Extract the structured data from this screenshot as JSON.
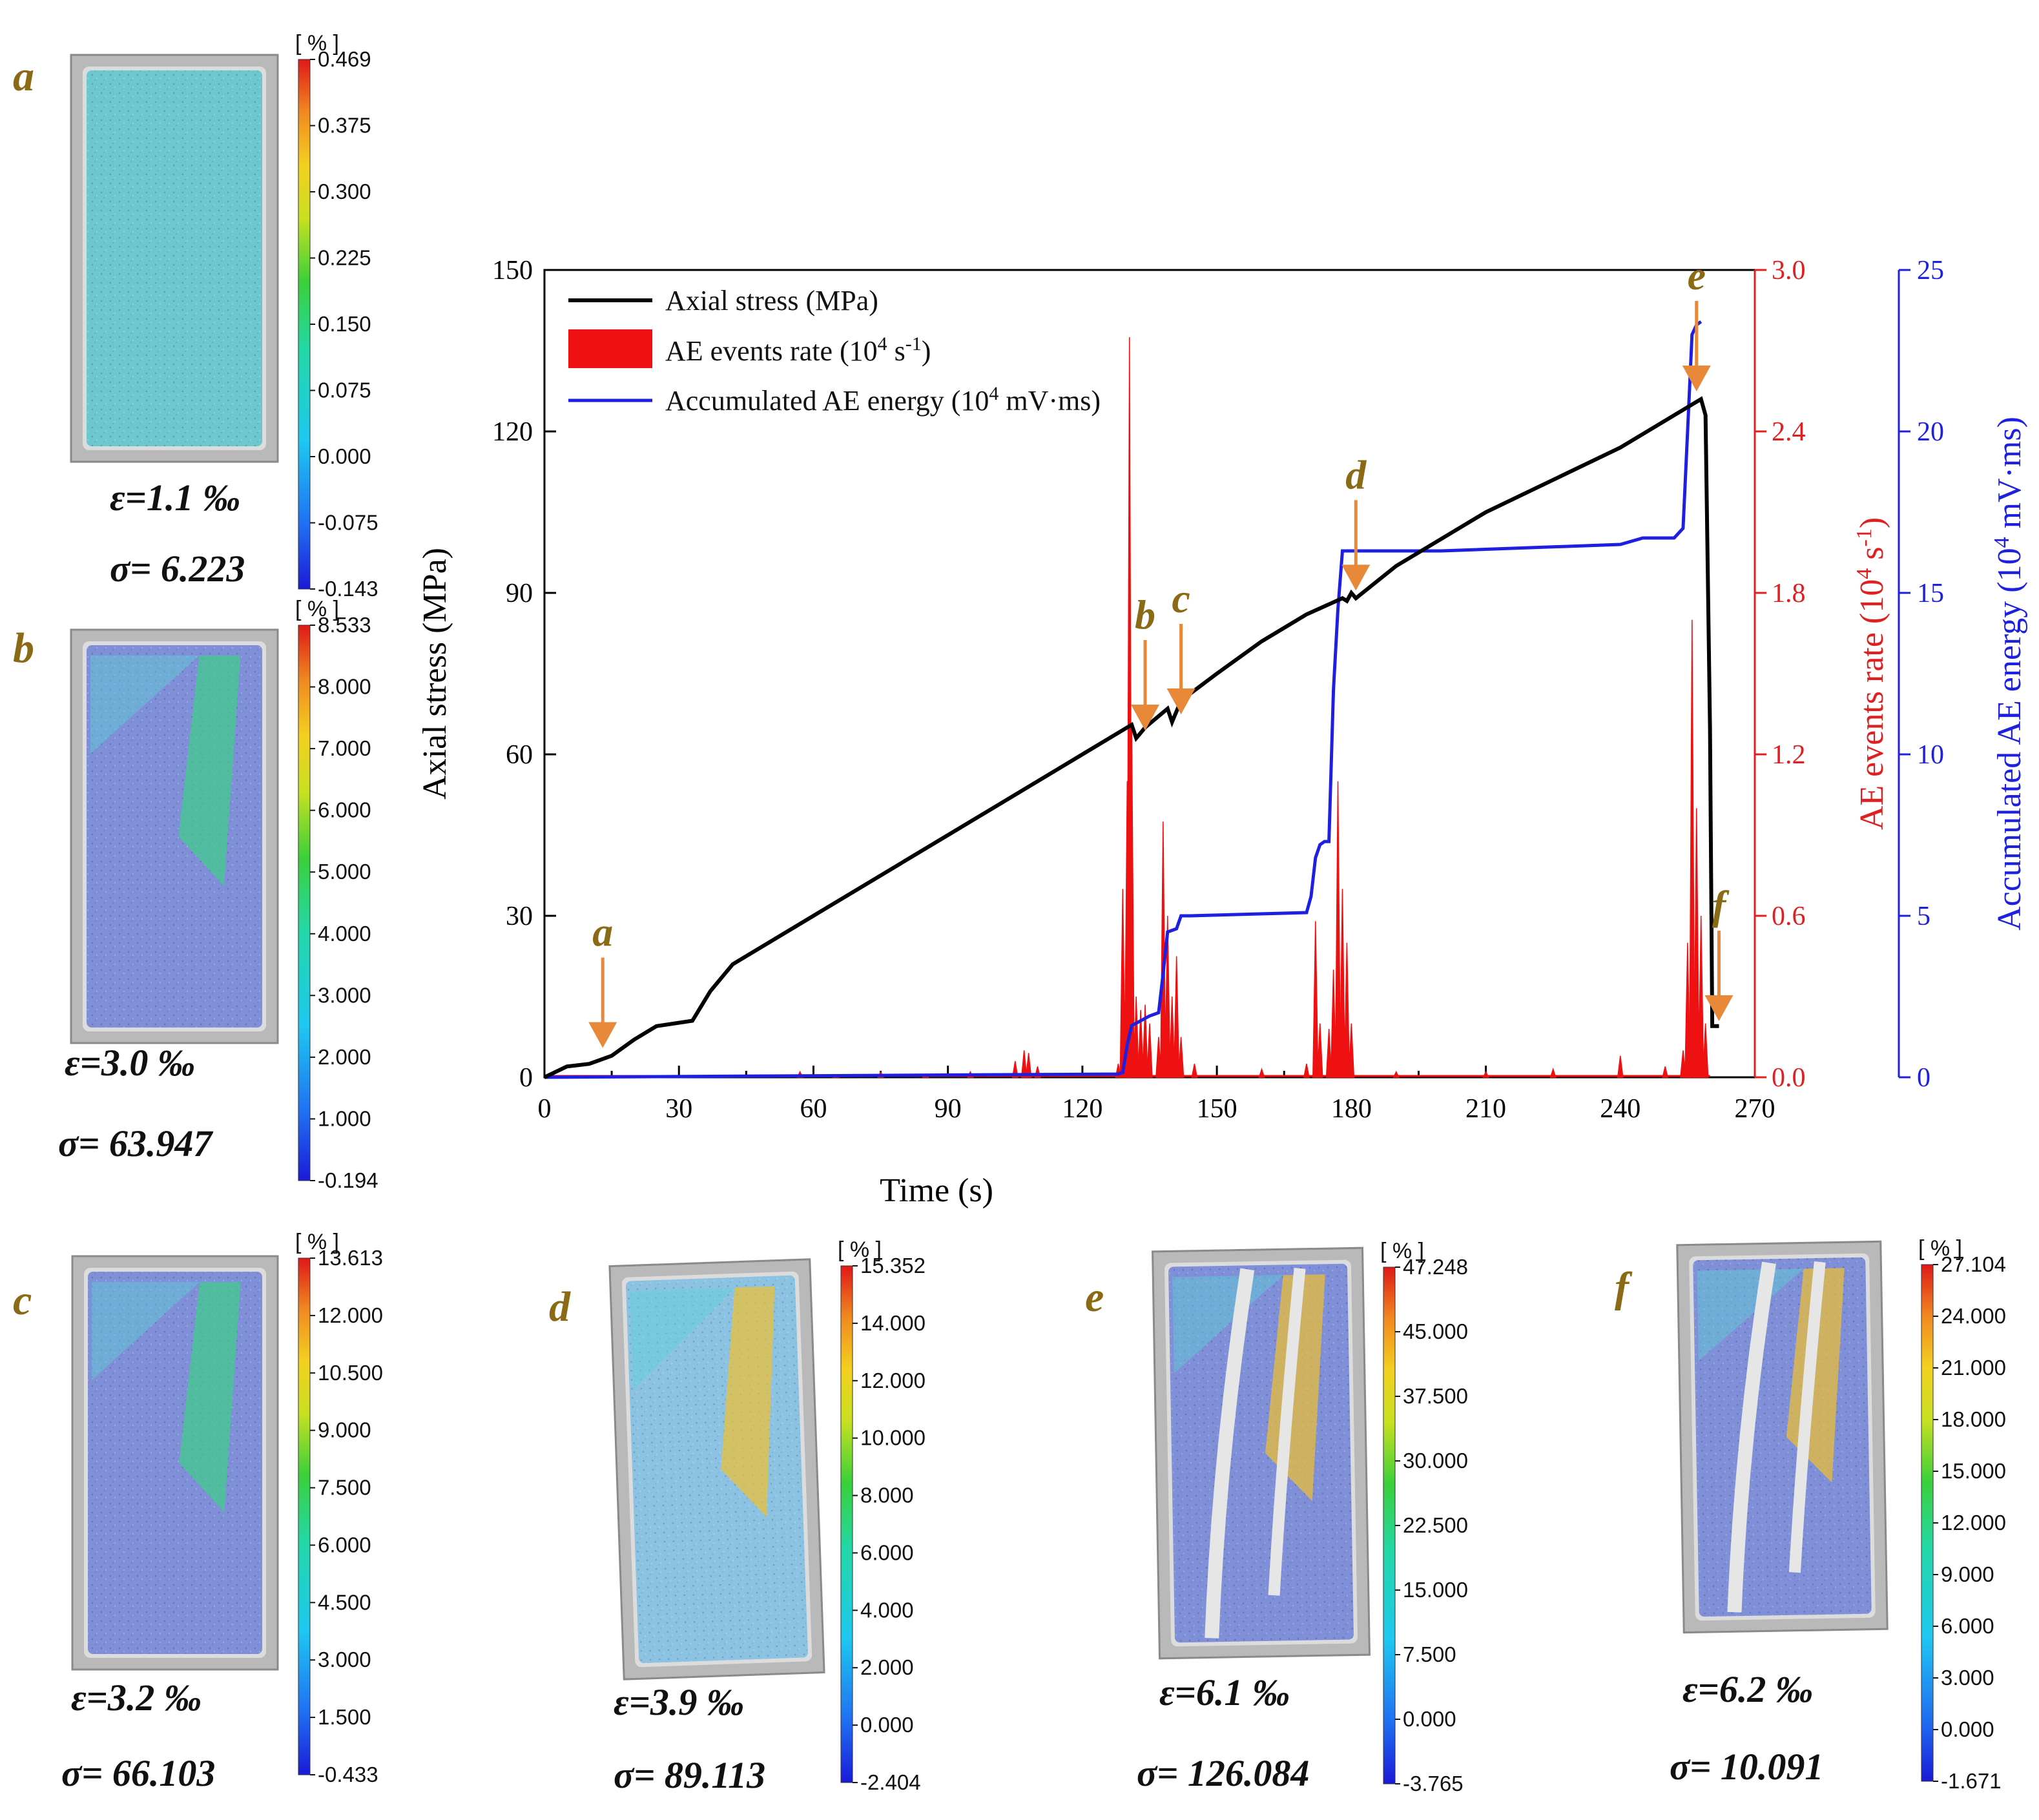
{
  "chart_data": {
    "type": "line",
    "xlabel": "Time (s)",
    "xlim": [
      0,
      270
    ],
    "xticks": [
      "0",
      "30",
      "60",
      "90",
      "120",
      "150",
      "180",
      "210",
      "240",
      "270"
    ],
    "axes": {
      "left": {
        "label": "Axial stress (MPa)",
        "lim": [
          0,
          150
        ],
        "ticks": [
          "0",
          "30",
          "60",
          "90",
          "120",
          "150"
        ],
        "color": "#000000"
      },
      "right1": {
        "label_main": "AE events rate (10",
        "label_sup": "4",
        "label_mid": " s",
        "label_sup2": "-1",
        "label_end": ")",
        "lim": [
          0,
          3.0
        ],
        "ticks": [
          "0.0",
          "0.6",
          "1.2",
          "1.8",
          "2.4",
          "3.0"
        ],
        "color": "#e02020"
      },
      "right2": {
        "label_main": "Accumulated AE energy (10",
        "label_sup": "4",
        "label_end": " mV·ms)",
        "lim": [
          0,
          25
        ],
        "ticks": [
          "0",
          "5",
          "10",
          "15",
          "20",
          "25"
        ],
        "color": "#1f1fe0"
      }
    },
    "legend": {
      "placement": "top-left",
      "items": [
        {
          "name": "Axial stress (MPa)",
          "color": "#000000",
          "kind": "line"
        },
        {
          "name_main": "AE events rate (10",
          "sup": "4",
          "mid": " s",
          "sup2": "-1",
          "end": ")",
          "color": "#ee1111",
          "kind": "patch"
        },
        {
          "name_main": "Accumulated AE energy (10",
          "sup": "4",
          "end": " mV·ms)",
          "color": "#1f1fe0",
          "kind": "line"
        }
      ]
    },
    "series": [
      {
        "name": "Axial stress",
        "axis": "left",
        "color": "#000000",
        "points": [
          [
            0,
            0
          ],
          [
            5,
            2
          ],
          [
            10,
            2.5
          ],
          [
            15,
            4
          ],
          [
            20,
            7
          ],
          [
            25,
            9.5
          ],
          [
            33,
            10.5
          ],
          [
            37,
            16
          ],
          [
            42,
            21
          ],
          [
            60,
            30
          ],
          [
            90,
            45
          ],
          [
            120,
            60
          ],
          [
            130,
            65
          ],
          [
            131,
            65.5
          ],
          [
            132,
            63
          ],
          [
            134,
            65
          ],
          [
            139,
            68.5
          ],
          [
            140,
            66
          ],
          [
            142,
            70
          ],
          [
            150,
            75
          ],
          [
            160,
            81
          ],
          [
            170,
            86
          ],
          [
            178,
            89
          ],
          [
            179,
            88.5
          ],
          [
            180,
            90
          ],
          [
            181,
            89
          ],
          [
            190,
            95
          ],
          [
            210,
            105
          ],
          [
            240,
            117
          ],
          [
            256,
            125
          ],
          [
            258,
            126
          ],
          [
            259,
            123
          ],
          [
            260,
            65
          ],
          [
            260.5,
            9.5
          ],
          [
            262,
            9.5
          ]
        ]
      },
      {
        "name": "Accumulated AE energy",
        "axis": "right2",
        "color": "#1f1fe0",
        "points": [
          [
            0,
            0
          ],
          [
            128,
            0.1
          ],
          [
            129,
            0.15
          ],
          [
            130,
            1.0
          ],
          [
            131,
            1.6
          ],
          [
            135,
            1.9
          ],
          [
            137,
            2.0
          ],
          [
            138,
            3.2
          ],
          [
            139,
            4.5
          ],
          [
            141,
            4.6
          ],
          [
            142,
            5.0
          ],
          [
            144,
            5.0
          ],
          [
            170,
            5.1
          ],
          [
            171,
            5.6
          ],
          [
            172,
            6.8
          ],
          [
            173,
            7.2
          ],
          [
            174,
            7.3
          ],
          [
            175,
            7.3
          ],
          [
            176,
            12
          ],
          [
            177,
            14.5
          ],
          [
            178,
            16.3
          ],
          [
            180,
            16.3
          ],
          [
            200,
            16.3
          ],
          [
            240,
            16.5
          ],
          [
            245,
            16.7
          ],
          [
            252,
            16.7
          ],
          [
            254,
            17.0
          ],
          [
            255,
            20
          ],
          [
            256,
            23.0
          ],
          [
            257,
            23.3
          ],
          [
            258,
            23.4
          ]
        ]
      },
      {
        "name": "AE events rate",
        "axis": "right1",
        "color": "#ee1111",
        "kind": "spikes",
        "points": [
          [
            57,
            0.02
          ],
          [
            65,
            0.01
          ],
          [
            75,
            0.02
          ],
          [
            85,
            0.01
          ],
          [
            95,
            0.02
          ],
          [
            105,
            0.06
          ],
          [
            107,
            0.1
          ],
          [
            108,
            0.09
          ],
          [
            110,
            0.04
          ],
          [
            128,
            0.05
          ],
          [
            129,
            0.7
          ],
          [
            130,
            1.1
          ],
          [
            130.5,
            2.75
          ],
          [
            131,
            1.3
          ],
          [
            132,
            0.3
          ],
          [
            133,
            0.25
          ],
          [
            134,
            0.27
          ],
          [
            135,
            0.2
          ],
          [
            137,
            0.15
          ],
          [
            138,
            0.95
          ],
          [
            139,
            0.6
          ],
          [
            140,
            0.3
          ],
          [
            141,
            0.45
          ],
          [
            142,
            0.15
          ],
          [
            145,
            0.05
          ],
          [
            160,
            0.03
          ],
          [
            170,
            0.05
          ],
          [
            172,
            0.58
          ],
          [
            173,
            0.2
          ],
          [
            175,
            0.18
          ],
          [
            176,
            0.4
          ],
          [
            177,
            1.1
          ],
          [
            178,
            0.7
          ],
          [
            179,
            0.5
          ],
          [
            180,
            0.2
          ],
          [
            190,
            0.02
          ],
          [
            210,
            0.02
          ],
          [
            225,
            0.03
          ],
          [
            240,
            0.08
          ],
          [
            250,
            0.04
          ],
          [
            254,
            0.1
          ],
          [
            255,
            0.5
          ],
          [
            256,
            1.7
          ],
          [
            257,
            1.0
          ],
          [
            258,
            0.6
          ],
          [
            259,
            0.2
          ]
        ]
      }
    ],
    "annotations": [
      {
        "label": "a",
        "t": 13,
        "stress": 4
      },
      {
        "label": "b",
        "t": 134,
        "stress": 63
      },
      {
        "label": "c",
        "t": 142,
        "stress": 66
      },
      {
        "label": "d",
        "t": 181,
        "stress": 89
      },
      {
        "label": "e",
        "t": 257,
        "stress": 126
      },
      {
        "label": "f",
        "t": 262,
        "stress": 9
      }
    ]
  },
  "panels": [
    {
      "label": "a",
      "strain": "ε=1.1 ‰",
      "stress": "σ= 6.223",
      "unit": "[ % ]",
      "ticks": [
        "0.469",
        "0.375",
        "0.300",
        "0.225",
        "0.150",
        "0.075",
        "0.000",
        "-0.075",
        "-0.143"
      ],
      "fill": "#6cc7cf"
    },
    {
      "label": "b",
      "strain": "ε=3.0 ‰",
      "stress": "σ= 63.947",
      "unit": "[ % ]",
      "ticks": [
        "8.533",
        "8.000",
        "7.000",
        "6.000",
        "5.000",
        "4.000",
        "3.000",
        "2.000",
        "1.000",
        "-0.194"
      ],
      "fill": "#7f8fd8"
    },
    {
      "label": "c",
      "strain": "ε=3.2 ‰",
      "stress": "σ= 66.103",
      "unit": "[ % ]",
      "ticks": [
        "13.613",
        "12.000",
        "10.500",
        "9.000",
        "7.500",
        "6.000",
        "4.500",
        "3.000",
        "1.500",
        "-0.433"
      ],
      "fill": "#7f8fd8"
    },
    {
      "label": "d",
      "strain": "ε=3.9 ‰",
      "stress": "σ= 89.113",
      "unit": "[ % ]",
      "ticks": [
        "15.352",
        "14.000",
        "12.000",
        "10.000",
        "8.000",
        "6.000",
        "4.000",
        "2.000",
        "0.000",
        "-2.404"
      ],
      "fill": "#8cc2e2"
    },
    {
      "label": "e",
      "strain": "ε=6.1 ‰",
      "stress": "σ= 126.084",
      "unit": "[ % ]",
      "ticks": [
        "47.248",
        "45.000",
        "37.500",
        "30.000",
        "22.500",
        "15.000",
        "7.500",
        "0.000",
        "-3.765"
      ],
      "fill": "#7f8fd8"
    },
    {
      "label": "f",
      "strain": "ε=6.2 ‰",
      "stress": "σ= 10.091",
      "unit": "[ % ]",
      "ticks": [
        "27.104",
        "24.000",
        "21.000",
        "18.000",
        "15.000",
        "12.000",
        "9.000",
        "6.000",
        "3.000",
        "0.000",
        "-1.671"
      ],
      "fill": "#7f8fd8"
    }
  ]
}
